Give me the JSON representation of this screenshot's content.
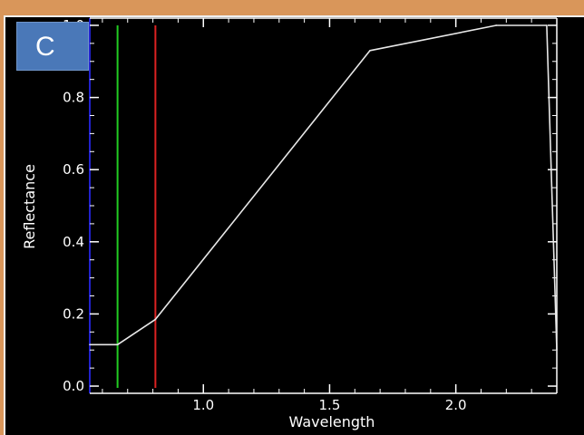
{
  "chart_data": {
    "type": "line",
    "panel_label": "C",
    "title": "",
    "xlabel": "Wavelength",
    "ylabel": "Reflectance",
    "xlim": [
      0.55,
      2.4
    ],
    "ylim": [
      -0.02,
      1.02
    ],
    "xticks": [
      "1.0",
      "1.5",
      "2.0"
    ],
    "xtick_values": [
      1.0,
      1.5,
      2.0
    ],
    "yticks": [
      "0.0",
      "0.2",
      "0.4",
      "0.6",
      "0.8",
      "1.0"
    ],
    "ytick_values": [
      0.0,
      0.2,
      0.4,
      0.6,
      0.8,
      1.0
    ],
    "series": [
      {
        "color": "#e8e8e8",
        "x": [
          0.55,
          0.66,
          0.81,
          1.66,
          2.16,
          2.36,
          2.4
        ],
        "y": [
          0.115,
          0.115,
          0.185,
          0.93,
          1.0,
          1.0,
          0.1
        ]
      }
    ],
    "vlines": [
      {
        "x": 0.66,
        "color": "#22cc22"
      },
      {
        "x": 0.81,
        "color": "#dd2222"
      }
    ],
    "colors": {
      "background": "#000000",
      "axes": "#ffffff",
      "text": "#ffffff",
      "y_axis_accent": "#2222cc",
      "badge": "#4a78b8",
      "frame": "#d9965a"
    },
    "grid": false
  }
}
